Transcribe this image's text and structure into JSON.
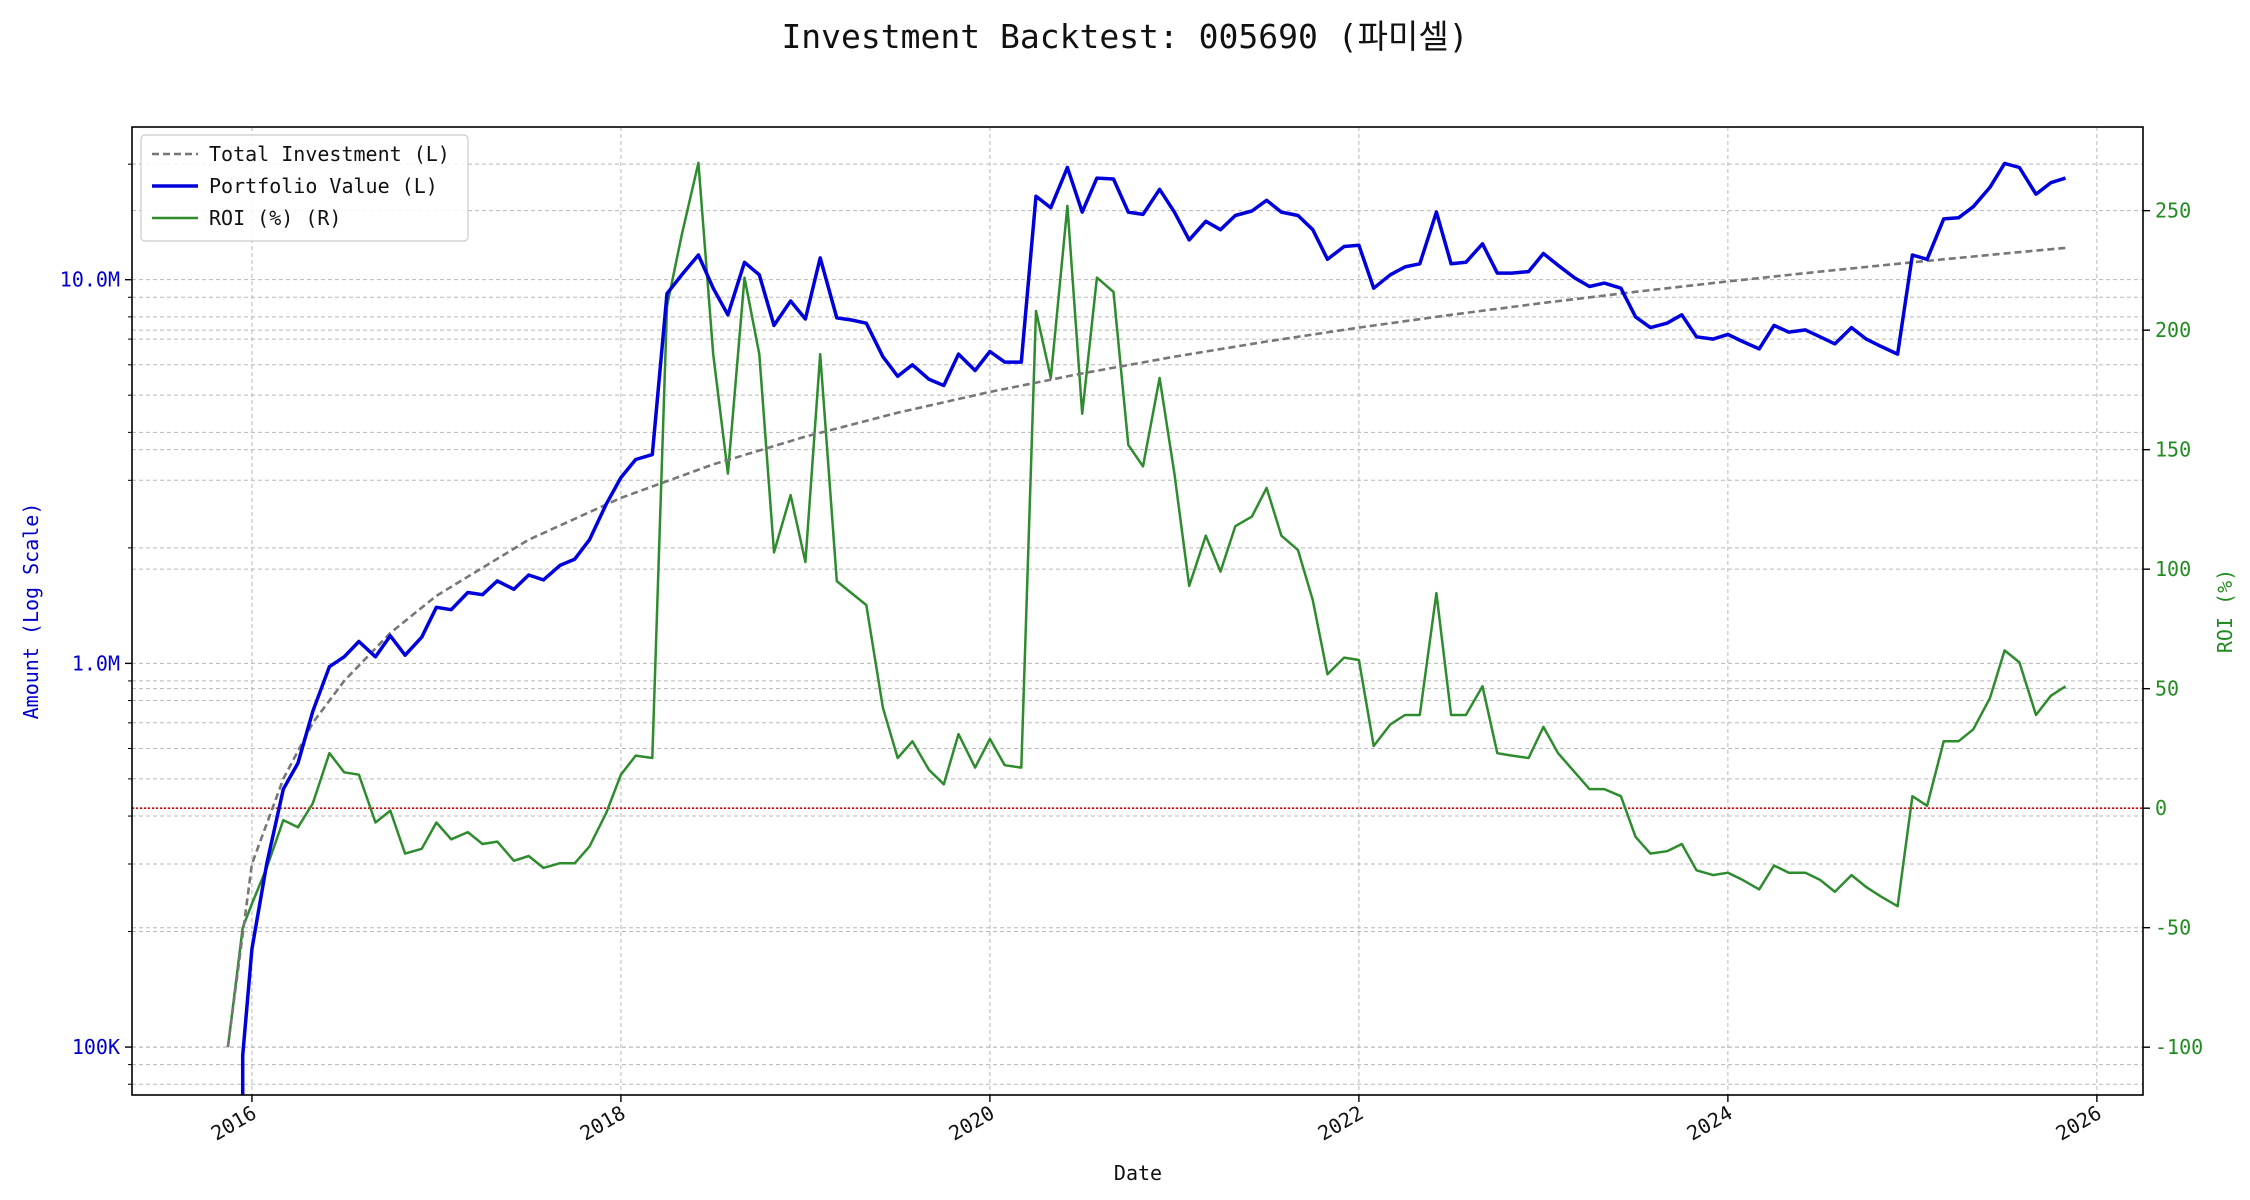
{
  "chart_data": {
    "type": "line",
    "title": "Investment Backtest: 005690 (파미셀)",
    "xlabel": "Date",
    "ylabel_left": "Amount (Log Scale)",
    "ylabel_right": "ROI (%)",
    "yscale_left": "log",
    "ylim_left": [
      75000,
      25000000
    ],
    "ylim_right": [
      -120,
      285
    ],
    "xlim": [
      2015.35,
      2026.25
    ],
    "x_ticks": [
      2016,
      2018,
      2020,
      2022,
      2024,
      2026
    ],
    "x_tick_labels": [
      "2016",
      "2018",
      "2020",
      "2022",
      "2024",
      "2026"
    ],
    "y_left_ticks": [
      100000,
      1000000,
      10000000
    ],
    "y_left_tick_labels": [
      "100K",
      "1.0M",
      "10.0M"
    ],
    "y_right_ticks": [
      -100,
      -50,
      0,
      50,
      100,
      150,
      200,
      250
    ],
    "y_right_tick_labels": [
      "-100",
      "-50",
      "0",
      "50",
      "100",
      "150",
      "200",
      "250"
    ],
    "grid": true,
    "legend_position": "top-left",
    "reference_line": {
      "axis": "right",
      "value": 0,
      "color": "#dd0000",
      "style": "dotted"
    },
    "series": [
      {
        "name": "Total Investment (L)",
        "axis": "left",
        "color": "#777777",
        "style": "dashed",
        "x": [
          2015.87,
          2016.0,
          2016.17,
          2016.33,
          2016.5,
          2016.75,
          2017.0,
          2017.5,
          2018.0,
          2018.5,
          2019.0,
          2019.5,
          2020.0,
          2020.5,
          2021.0,
          2021.5,
          2022.0,
          2022.5,
          2023.0,
          2023.5,
          2024.0,
          2024.5,
          2025.0,
          2025.5,
          2025.83
        ],
        "values": [
          100000,
          300000,
          500000,
          700000,
          900000,
          1200000,
          1500000,
          2100000,
          2700000,
          3300000,
          3900000,
          4500000,
          5100000,
          5700000,
          6300000,
          6900000,
          7500000,
          8100000,
          8700000,
          9300000,
          9900000,
          10500000,
          11100000,
          11700000,
          12100000
        ]
      },
      {
        "name": "Portfolio Value (L)",
        "axis": "left",
        "color": "#0000dd",
        "style": "solid",
        "x": [
          2015.95,
          2015.95,
          2016.0,
          2016.08,
          2016.17,
          2016.25,
          2016.33,
          2016.42,
          2016.5,
          2016.58,
          2016.67,
          2016.75,
          2016.83,
          2016.92,
          2017.0,
          2017.08,
          2017.17,
          2017.25,
          2017.33,
          2017.42,
          2017.5,
          2017.58,
          2017.67,
          2017.75,
          2017.83,
          2017.92,
          2018.0,
          2018.08,
          2018.17,
          2018.25,
          2018.33,
          2018.42,
          2018.5,
          2018.58,
          2018.67,
          2018.75,
          2018.83,
          2018.92,
          2019.0,
          2019.08,
          2019.17,
          2019.25,
          2019.33,
          2019.42,
          2019.5,
          2019.58,
          2019.67,
          2019.75,
          2019.83,
          2019.92,
          2020.0,
          2020.08,
          2020.17,
          2020.25,
          2020.33,
          2020.42,
          2020.5,
          2020.58,
          2020.67,
          2020.75,
          2020.83,
          2020.92,
          2021.0,
          2021.08,
          2021.17,
          2021.25,
          2021.33,
          2021.42,
          2021.5,
          2021.58,
          2021.67,
          2021.75,
          2021.83,
          2021.92,
          2022.0,
          2022.08,
          2022.17,
          2022.25,
          2022.33,
          2022.42,
          2022.5,
          2022.58,
          2022.67,
          2022.75,
          2022.83,
          2022.92,
          2023.0,
          2023.08,
          2023.17,
          2023.25,
          2023.33,
          2023.42,
          2023.5,
          2023.58,
          2023.67,
          2023.75,
          2023.83,
          2023.92,
          2024.0,
          2024.08,
          2024.17,
          2024.25,
          2024.33,
          2024.42,
          2024.5,
          2024.58,
          2024.67,
          2024.75,
          2024.83,
          2024.92,
          2025.0,
          2025.08,
          2025.17,
          2025.25,
          2025.33,
          2025.42,
          2025.5,
          2025.58,
          2025.67,
          2025.75,
          2025.83
        ],
        "values": [
          70000,
          95000,
          180000,
          300000,
          470000,
          550000,
          750000,
          980000,
          1040000,
          1140000,
          1040000,
          1180000,
          1050000,
          1170000,
          1400000,
          1380000,
          1530000,
          1510000,
          1640000,
          1560000,
          1700000,
          1650000,
          1800000,
          1870000,
          2100000,
          2600000,
          3050000,
          3400000,
          3500000,
          9200000,
          10300000,
          11600000,
          9500000,
          8100000,
          11100000,
          10300000,
          7600000,
          8800000,
          7900000,
          11400000,
          7950000,
          7850000,
          7700000,
          6300000,
          5600000,
          6000000,
          5500000,
          5300000,
          6400000,
          5800000,
          6500000,
          6100000,
          6100000,
          16500000,
          15400000,
          19600000,
          15000000,
          18400000,
          18300000,
          15000000,
          14800000,
          17200000,
          15000000,
          12700000,
          14200000,
          13500000,
          14700000,
          15100000,
          16100000,
          15000000,
          14700000,
          13500000,
          11300000,
          12200000,
          12300000,
          9500000,
          10300000,
          10800000,
          11000000,
          15000000,
          11000000,
          11100000,
          12400000,
          10400000,
          10400000,
          10500000,
          11700000,
          10900000,
          10100000,
          9600000,
          9800000,
          9500000,
          8000000,
          7500000,
          7700000,
          8100000,
          7100000,
          7000000,
          7200000,
          6900000,
          6600000,
          7600000,
          7300000,
          7400000,
          7100000,
          6800000,
          7500000,
          7000000,
          6700000,
          6400000,
          11600000,
          11300000,
          14400000,
          14500000,
          15500000,
          17400000,
          20100000,
          19600000,
          16700000,
          17900000,
          18400000
        ]
      },
      {
        "name": "ROI (%) (R)",
        "axis": "right",
        "color": "#2e8b2e",
        "style": "solid",
        "x": [
          2015.87,
          2015.95,
          2016.0,
          2016.08,
          2016.17,
          2016.25,
          2016.33,
          2016.42,
          2016.5,
          2016.58,
          2016.67,
          2016.75,
          2016.83,
          2016.92,
          2017.0,
          2017.08,
          2017.17,
          2017.25,
          2017.33,
          2017.42,
          2017.5,
          2017.58,
          2017.67,
          2017.75,
          2017.83,
          2017.92,
          2018.0,
          2018.08,
          2018.17,
          2018.25,
          2018.33,
          2018.42,
          2018.5,
          2018.58,
          2018.67,
          2018.75,
          2018.83,
          2018.92,
          2019.0,
          2019.08,
          2019.17,
          2019.25,
          2019.33,
          2019.42,
          2019.5,
          2019.58,
          2019.67,
          2019.75,
          2019.83,
          2019.92,
          2020.0,
          2020.08,
          2020.17,
          2020.25,
          2020.33,
          2020.42,
          2020.5,
          2020.58,
          2020.67,
          2020.75,
          2020.83,
          2020.92,
          2021.0,
          2021.08,
          2021.17,
          2021.25,
          2021.33,
          2021.42,
          2021.5,
          2021.58,
          2021.67,
          2021.75,
          2021.83,
          2021.92,
          2022.0,
          2022.08,
          2022.17,
          2022.25,
          2022.33,
          2022.42,
          2022.5,
          2022.58,
          2022.67,
          2022.75,
          2022.83,
          2022.92,
          2023.0,
          2023.08,
          2023.17,
          2023.25,
          2023.33,
          2023.42,
          2023.5,
          2023.58,
          2023.67,
          2023.75,
          2023.83,
          2023.92,
          2024.0,
          2024.08,
          2024.17,
          2024.25,
          2024.33,
          2024.42,
          2024.5,
          2024.58,
          2024.67,
          2024.75,
          2024.83,
          2024.92,
          2025.0,
          2025.08,
          2025.17,
          2025.25,
          2025.33,
          2025.42,
          2025.5,
          2025.58,
          2025.67,
          2025.75,
          2025.83
        ],
        "values": [
          -100,
          -50,
          -40,
          -25,
          -5,
          -8,
          2,
          23,
          15,
          14,
          -6,
          -1,
          -19,
          -17,
          -6,
          -13,
          -10,
          -15,
          -14,
          -22,
          -20,
          -25,
          -23,
          -23,
          -16,
          -2,
          14,
          22,
          21,
          210,
          240,
          270,
          190,
          140,
          222,
          190,
          107,
          131,
          103,
          190,
          95,
          90,
          85,
          42,
          21,
          28,
          16,
          10,
          31,
          17,
          29,
          18,
          17,
          208,
          180,
          252,
          165,
          222,
          216,
          152,
          143,
          180,
          140,
          93,
          114,
          99,
          118,
          122,
          134,
          114,
          108,
          87,
          56,
          63,
          62,
          26,
          35,
          39,
          39,
          90,
          39,
          39,
          51,
          23,
          22,
          21,
          34,
          23,
          15,
          8,
          8,
          5,
          -12,
          -19,
          -18,
          -15,
          -26,
          -28,
          -27,
          -30,
          -34,
          -24,
          -27,
          -27,
          -30,
          -35,
          -28,
          -33,
          -37,
          -41,
          5,
          1,
          28,
          28,
          33,
          46,
          66,
          61,
          39,
          47,
          51
        ]
      }
    ]
  }
}
